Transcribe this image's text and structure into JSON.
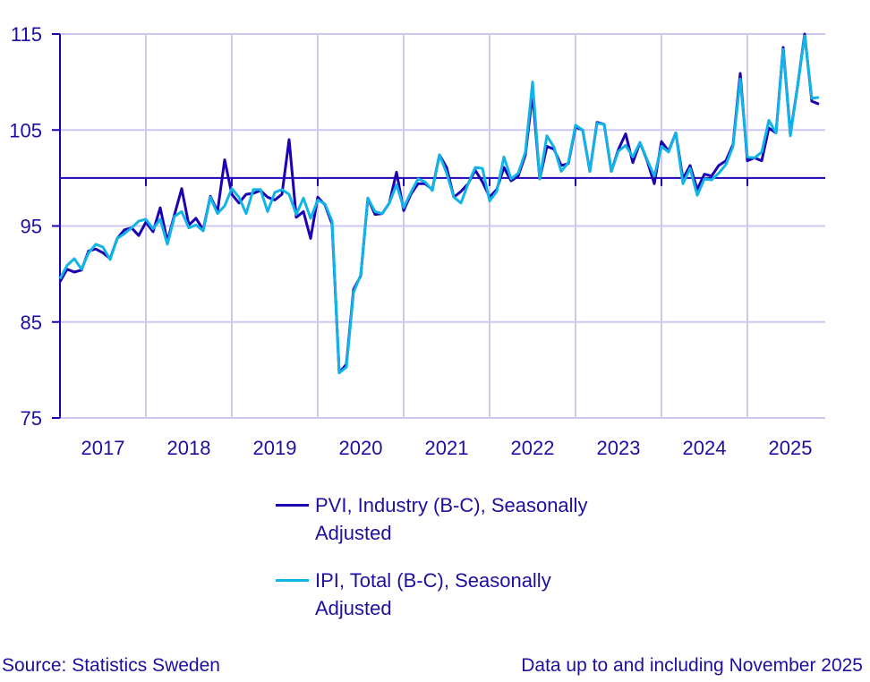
{
  "chart_data": {
    "type": "line",
    "title": "",
    "xlabel": "",
    "ylabel": "",
    "x_start": "2017-01",
    "x_end": "2025-11",
    "x_frequency": "monthly",
    "x_tick_labels": [
      "2017",
      "2018",
      "2019",
      "2020",
      "2021",
      "2022",
      "2023",
      "2024",
      "2025"
    ],
    "y_ticks": [
      75,
      85,
      95,
      105,
      115
    ],
    "ylim": [
      75,
      115
    ],
    "reference_line": 100,
    "grid": true,
    "legend_placement": "bottom",
    "series": [
      {
        "name": "PVI, Industry (B-C), Seasonally Adjusted",
        "color": "#1e00b4",
        "values": [
          89.2,
          90.5,
          90.2,
          90.4,
          92.4,
          92.6,
          92.2,
          91.6,
          93.7,
          94.6,
          94.8,
          94.0,
          95.4,
          94.4,
          96.9,
          93.4,
          96.2,
          98.9,
          95.1,
          95.8,
          94.6,
          98.1,
          96.5,
          101.9,
          98.3,
          97.4,
          98.3,
          98.4,
          98.7,
          98.0,
          97.7,
          98.3,
          104.0,
          95.9,
          96.5,
          93.7,
          98.0,
          97.2,
          95.2,
          79.7,
          80.6,
          88.4,
          89.8,
          97.9,
          96.2,
          96.3,
          97.4,
          100.6,
          96.6,
          98.3,
          99.4,
          99.4,
          98.8,
          102.4,
          101.1,
          98.0,
          98.6,
          99.4,
          100.8,
          99.6,
          98.0,
          98.8,
          101.1,
          99.7,
          100.2,
          102.4,
          108.8,
          99.9,
          103.3,
          103.0,
          101.3,
          101.5,
          105.3,
          105.0,
          100.7,
          105.8,
          105.6,
          100.7,
          103.0,
          104.6,
          101.6,
          103.7,
          101.8,
          99.4,
          103.8,
          102.8,
          104.7,
          99.9,
          101.3,
          98.8,
          100.4,
          100.2,
          101.3,
          101.8,
          103.5,
          110.9,
          101.8,
          102.1,
          101.8,
          105.2,
          104.7,
          113.6,
          104.6,
          109.5,
          115.0,
          108.0,
          107.7
        ]
      },
      {
        "name": "IPI, Total (B-C), Seasonally Adjusted",
        "color": "#10b4e6",
        "values": [
          89.5,
          90.9,
          91.6,
          90.5,
          92.2,
          93.1,
          92.8,
          91.5,
          93.7,
          94.2,
          94.8,
          95.5,
          95.7,
          94.7,
          95.7,
          93.1,
          96.0,
          96.5,
          94.8,
          95.1,
          94.5,
          98.0,
          96.3,
          97.1,
          98.9,
          98.0,
          96.3,
          98.8,
          98.8,
          96.5,
          98.5,
          98.8,
          98.3,
          96.2,
          97.9,
          95.8,
          97.7,
          97.3,
          95.5,
          79.7,
          80.3,
          88.1,
          89.9,
          97.9,
          96.5,
          96.3,
          97.4,
          99.3,
          96.9,
          98.5,
          99.9,
          99.6,
          98.7,
          102.4,
          100.5,
          98.0,
          97.4,
          99.4,
          101.1,
          101.0,
          97.6,
          98.6,
          102.2,
          99.9,
          100.5,
          102.7,
          110.0,
          99.9,
          104.4,
          103.2,
          100.7,
          101.6,
          105.5,
          105.0,
          100.7,
          105.7,
          105.6,
          100.7,
          102.8,
          103.4,
          102.2,
          103.7,
          101.9,
          100.2,
          103.3,
          102.7,
          104.7,
          99.4,
          101.0,
          98.2,
          99.9,
          99.8,
          100.5,
          101.4,
          103.3,
          110.3,
          102.2,
          102.1,
          102.7,
          106.0,
          104.7,
          113.4,
          104.4,
          109.5,
          114.8,
          108.3,
          108.4
        ]
      }
    ]
  },
  "legend": {
    "items": [
      {
        "line1": "PVI, Industry (B-C), Seasonally",
        "line2": "Adjusted"
      },
      {
        "line1": "IPI, Total (B-C), Seasonally",
        "line2": "Adjusted"
      }
    ]
  },
  "footer": {
    "source": "Source: Statistics Sweden",
    "note": "Data up to and including November 2025"
  },
  "colors": {
    "grid": "#cdc8f0",
    "axis": "#1e00b4",
    "text": "#1e0fa0"
  }
}
